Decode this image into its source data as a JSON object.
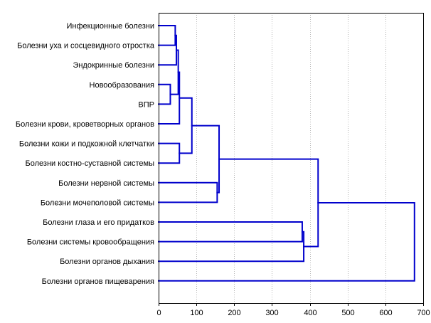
{
  "chart_data": {
    "type": "dendrogram",
    "orientation": "horizontal",
    "title": "",
    "xlabel": "",
    "ylabel": "",
    "xlim": [
      0,
      700
    ],
    "x_ticks": [
      0,
      100,
      200,
      300,
      400,
      500,
      600,
      700
    ],
    "grid": true,
    "link_color": "#0000cc",
    "leaves": [
      "Инфекционные болезни",
      "Болезни уха и сосцевидного отростка",
      "Эндокринные болезни",
      "Новообразования",
      "ВПР",
      "Болезни крови, кроветворных органов",
      "Болезни кожи и подкожной клетчатки",
      "Болезни костно-суставной системы",
      "Болезни нервной системы",
      "Болезни мочеполовой системы",
      "Болезни глаза и его придатков",
      "Болезни системы кровообращения",
      "Болезни органов дыхания",
      "Болезни органов пищеварения"
    ],
    "merges": [
      {
        "id": "m1",
        "left": 0,
        "right": 1,
        "height": 44
      },
      {
        "id": "m2",
        "left": "m1",
        "right": 2,
        "height": 47
      },
      {
        "id": "m3",
        "left": 3,
        "right": 4,
        "height": 31
      },
      {
        "id": "m4",
        "left": "m2",
        "right": "m3",
        "height": 52
      },
      {
        "id": "m5",
        "left": "m4",
        "right": 5,
        "height": 55
      },
      {
        "id": "m6",
        "left": 6,
        "right": 7,
        "height": 55
      },
      {
        "id": "m7",
        "left": "m5",
        "right": "m6",
        "height": 88
      },
      {
        "id": "m8",
        "left": 8,
        "right": 9,
        "height": 155
      },
      {
        "id": "m9",
        "left": "m7",
        "right": "m8",
        "height": 160
      },
      {
        "id": "m10",
        "left": 10,
        "right": 11,
        "height": 380
      },
      {
        "id": "m11",
        "left": "m10",
        "right": 12,
        "height": 384
      },
      {
        "id": "m12",
        "left": "m9",
        "right": "m11",
        "height": 422
      },
      {
        "id": "m13",
        "left": "m12",
        "right": 13,
        "height": 677
      }
    ]
  }
}
